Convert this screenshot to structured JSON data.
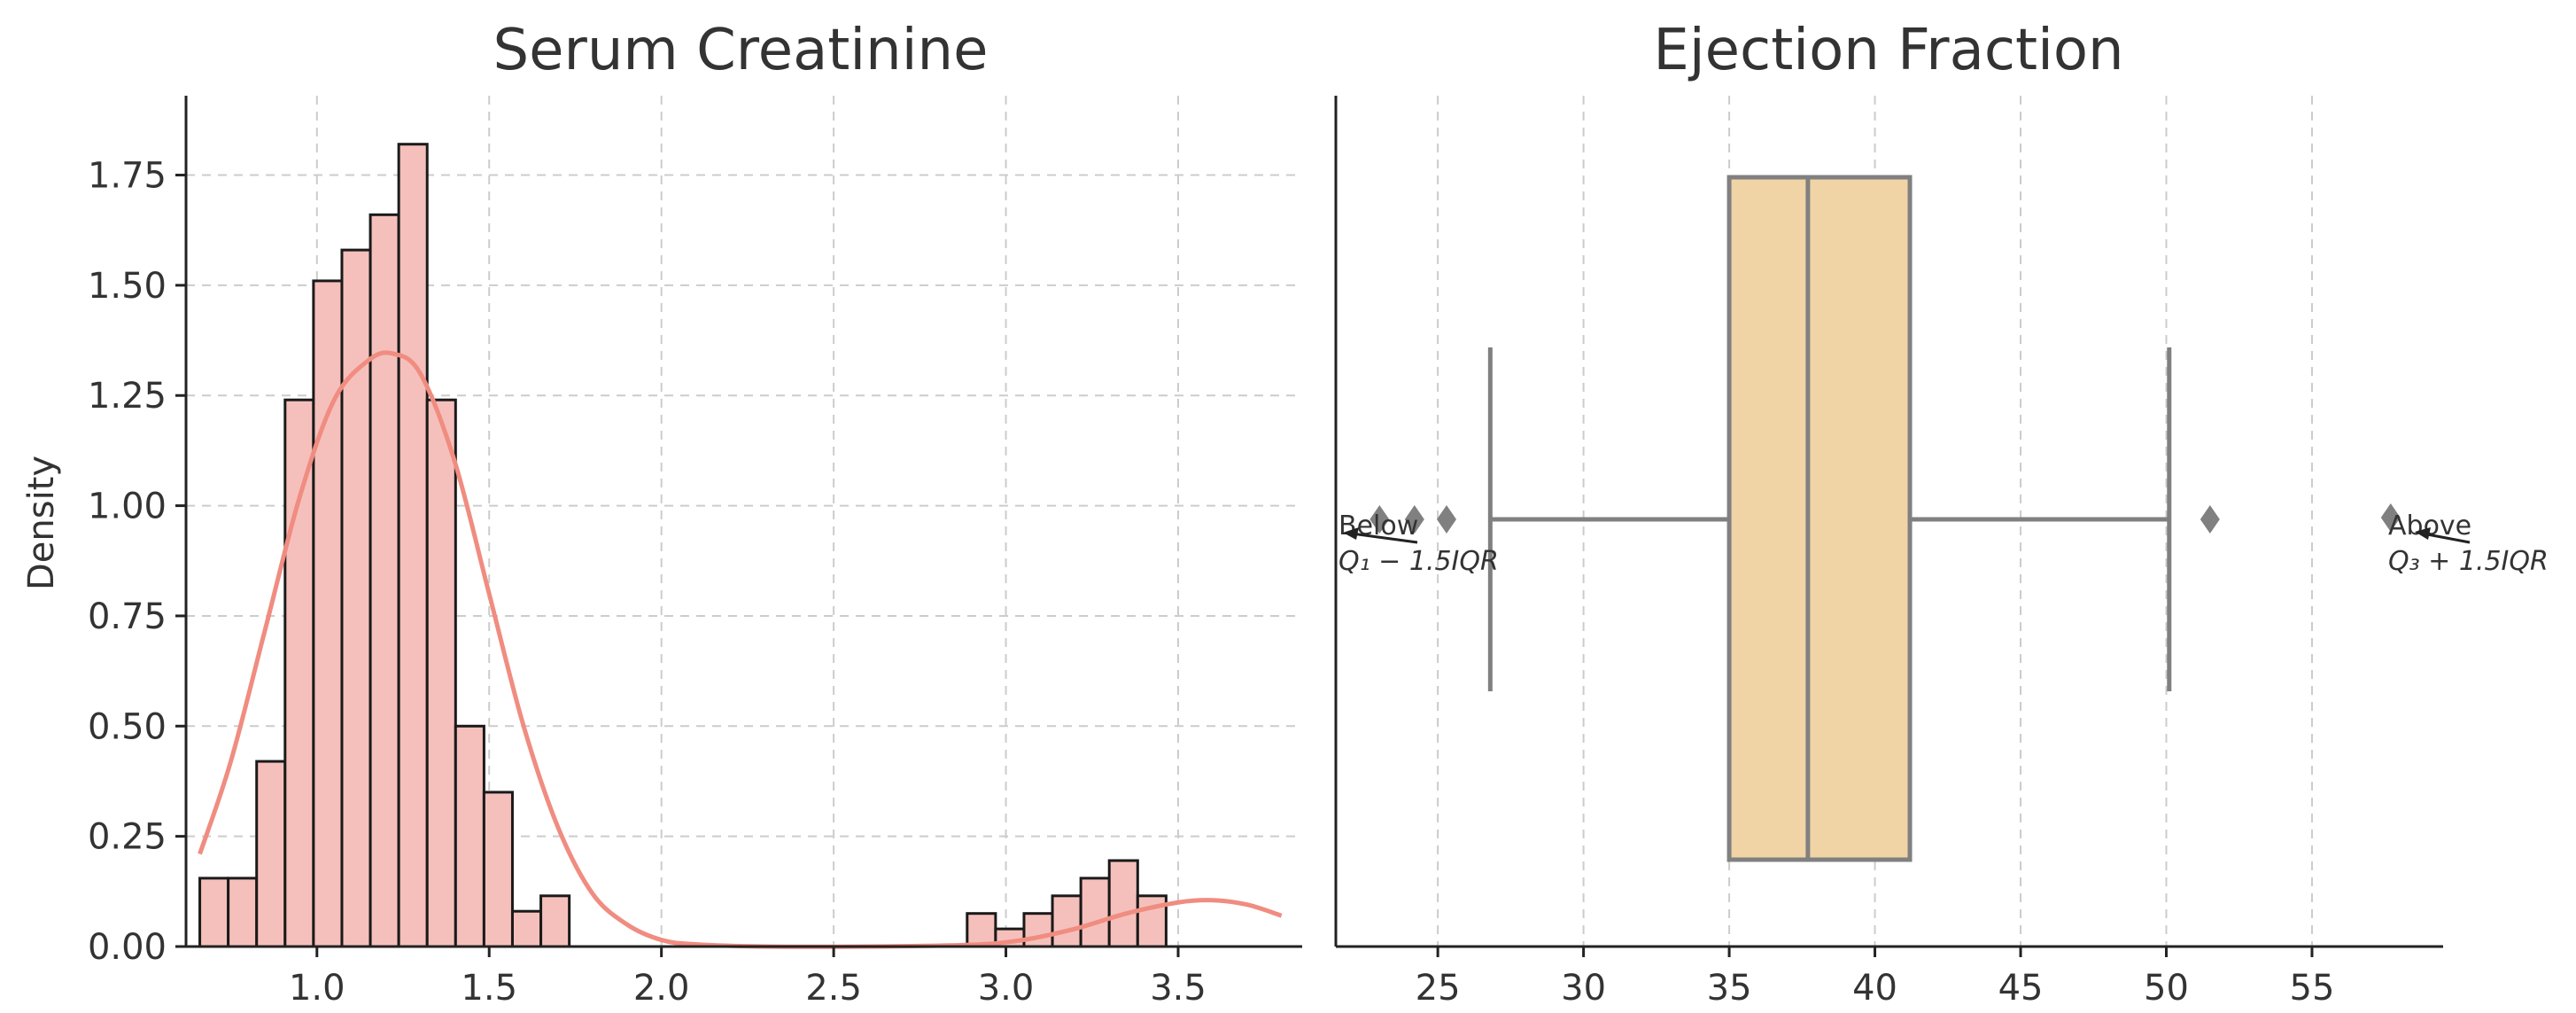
{
  "colors": {
    "hist_fill": "#f5c0bb",
    "hist_edge": "#1a1a1a",
    "kde_line": "#f08c80",
    "box_fill": "#f0d4a6",
    "box_line": "#808080",
    "outlier": "#808080",
    "grid": "#cccccc",
    "spine": "#222222",
    "text": "#333333"
  },
  "chart_data": [
    {
      "type": "bar",
      "subtype": "histogram-with-kde",
      "title": "Serum Creatinine",
      "xlabel": "",
      "ylabel": "Density",
      "xlim": [
        0.62,
        3.86
      ],
      "ylim": [
        0,
        1.93
      ],
      "grid": true,
      "xticks": [
        {
          "v": 1.0,
          "label": "1.0"
        },
        {
          "v": 1.5,
          "label": "1.5"
        },
        {
          "v": 2.0,
          "label": "2.0"
        },
        {
          "v": 2.5,
          "label": "2.5"
        },
        {
          "v": 3.0,
          "label": "3.0"
        },
        {
          "v": 3.5,
          "label": "3.5"
        }
      ],
      "yticks": [
        {
          "v": 0.0,
          "label": "0.00"
        },
        {
          "v": 0.25,
          "label": "0.25"
        },
        {
          "v": 0.5,
          "label": "0.50"
        },
        {
          "v": 0.75,
          "label": "0.75"
        },
        {
          "v": 1.0,
          "label": "1.00"
        },
        {
          "v": 1.25,
          "label": "1.25"
        },
        {
          "v": 1.5,
          "label": "1.50"
        },
        {
          "v": 1.75,
          "label": "1.75"
        }
      ],
      "bin_start": 0.66,
      "bin_width": 0.0825,
      "densities": [
        0.155,
        0.155,
        0.42,
        1.24,
        1.51,
        1.58,
        1.66,
        1.82,
        1.24,
        0.5,
        0.35,
        0.08,
        0.115,
        0,
        0,
        0,
        0,
        0,
        0,
        0,
        0,
        0,
        0,
        0,
        0,
        0,
        0,
        0.075,
        0.04,
        0.075,
        0.115,
        0.155,
        0.195,
        0.115
      ],
      "kde": {
        "x": [
          0.66,
          0.75,
          0.85,
          0.95,
          1.05,
          1.15,
          1.22,
          1.3,
          1.4,
          1.5,
          1.6,
          1.7,
          1.8,
          1.9,
          2.0,
          2.1,
          2.3,
          2.6,
          2.9,
          3.05,
          3.2,
          3.35,
          3.5,
          3.6,
          3.7,
          3.8
        ],
        "y": [
          0.21,
          0.42,
          0.72,
          1.02,
          1.24,
          1.33,
          1.345,
          1.3,
          1.1,
          0.8,
          0.5,
          0.27,
          0.12,
          0.05,
          0.015,
          0.005,
          0.0,
          0.0,
          0.004,
          0.015,
          0.04,
          0.075,
          0.1,
          0.105,
          0.095,
          0.07
        ]
      }
    },
    {
      "type": "boxplot",
      "title": "Ejection Fraction",
      "xlabel": "",
      "ylabel": "",
      "xlim": [
        21.5,
        59.5
      ],
      "grid": true,
      "xticks": [
        {
          "v": 25,
          "label": "25"
        },
        {
          "v": 30,
          "label": "30"
        },
        {
          "v": 35,
          "label": "35"
        },
        {
          "v": 40,
          "label": "40"
        },
        {
          "v": 45,
          "label": "45"
        },
        {
          "v": 50,
          "label": "50"
        },
        {
          "v": 55,
          "label": "55"
        }
      ],
      "whisker_low": 26.8,
      "q1": 35.0,
      "median": 37.7,
      "q3": 41.2,
      "whisker_high": 50.1,
      "outliers": [
        23.0,
        24.2,
        25.3,
        51.5,
        57.7
      ],
      "annotations": [
        {
          "line1": "Below",
          "line2": "Q₁ − 1.5IQR",
          "side": "left"
        },
        {
          "line1": "Above",
          "line2": "Q₃ + 1.5IQR",
          "side": "right"
        }
      ]
    }
  ]
}
